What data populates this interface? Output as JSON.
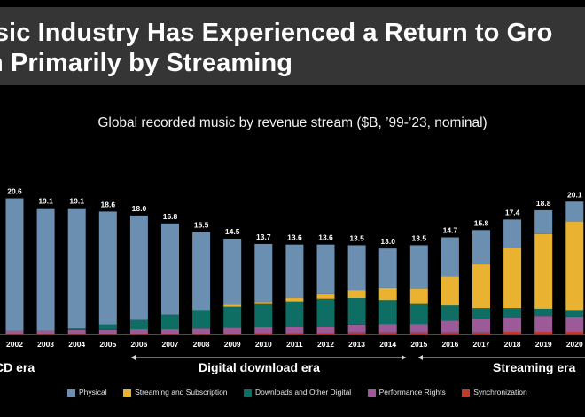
{
  "title": {
    "line1": "usic Industry Has Experienced a Return to Gro",
    "line2": "n Primarily by Streaming"
  },
  "chart_data": {
    "type": "bar",
    "stacked": true,
    "title": "Global recorded music by revenue stream ($B, ’99-’23, nominal)",
    "categories": [
      "2002",
      "2003",
      "2004",
      "2005",
      "2006",
      "2007",
      "2008",
      "2009",
      "2010",
      "2011",
      "2012",
      "2013",
      "2014",
      "2015",
      "2016",
      "2017",
      "2018",
      "2019",
      "2020"
    ],
    "totals": [
      20.6,
      19.1,
      19.1,
      18.6,
      18.0,
      16.8,
      15.5,
      14.5,
      13.7,
      13.6,
      13.6,
      13.5,
      13.0,
      13.5,
      14.7,
      15.8,
      17.4,
      18.8,
      20.1
    ],
    "series": [
      {
        "name": "Synchronization",
        "color": "#c0392b",
        "values": [
          0.1,
          0.1,
          0.1,
          0.1,
          0.1,
          0.1,
          0.1,
          0.1,
          0.2,
          0.2,
          0.2,
          0.3,
          0.3,
          0.3,
          0.3,
          0.3,
          0.4,
          0.4,
          0.4
        ]
      },
      {
        "name": "Performance Rights",
        "color": "#9c5a99",
        "values": [
          0.5,
          0.5,
          0.6,
          0.6,
          0.7,
          0.7,
          0.8,
          0.9,
          0.9,
          1.0,
          1.0,
          1.2,
          1.3,
          1.3,
          1.8,
          2.1,
          2.2,
          2.4,
          2.3
        ]
      },
      {
        "name": "Downloads and Other Digital",
        "color": "#0e6e63",
        "values": [
          0.0,
          0.0,
          0.2,
          0.8,
          1.4,
          2.2,
          2.8,
          3.2,
          3.5,
          3.8,
          4.2,
          4.0,
          3.6,
          3.0,
          2.3,
          1.6,
          1.4,
          1.1,
          1.0
        ]
      },
      {
        "name": "Streaming and Subscription",
        "color": "#e9b231",
        "values": [
          0.0,
          0.0,
          0.0,
          0.0,
          0.0,
          0.0,
          0.0,
          0.3,
          0.3,
          0.5,
          0.8,
          1.2,
          1.8,
          2.3,
          4.4,
          6.6,
          9.1,
          11.3,
          13.4
        ]
      },
      {
        "name": "Physical",
        "color": "#6b8fb1",
        "values": [
          20.0,
          18.5,
          18.2,
          17.1,
          15.8,
          13.8,
          11.8,
          10.0,
          8.8,
          8.1,
          7.4,
          6.8,
          6.0,
          6.6,
          5.9,
          5.2,
          4.3,
          3.6,
          3.0
        ]
      }
    ],
    "eras": [
      "CD era",
      "Digital download era",
      "Streaming era"
    ],
    "legend": [
      "Physical",
      "Streaming and Subscription",
      "Downloads and Other Digital",
      "Performance Rights",
      "Synchronization"
    ],
    "ylim": [
      0,
      22
    ],
    "xlabel": "",
    "ylabel": ""
  },
  "legend": [
    {
      "label": "Physical",
      "color": "#6b8fb1"
    },
    {
      "label": "Streaming and Subscription",
      "color": "#e9b231"
    },
    {
      "label": "Downloads and Other Digital",
      "color": "#0e6e63"
    },
    {
      "label": "Performance Rights",
      "color": "#9c5a99"
    },
    {
      "label": "Synchronization",
      "color": "#c0392b"
    }
  ]
}
